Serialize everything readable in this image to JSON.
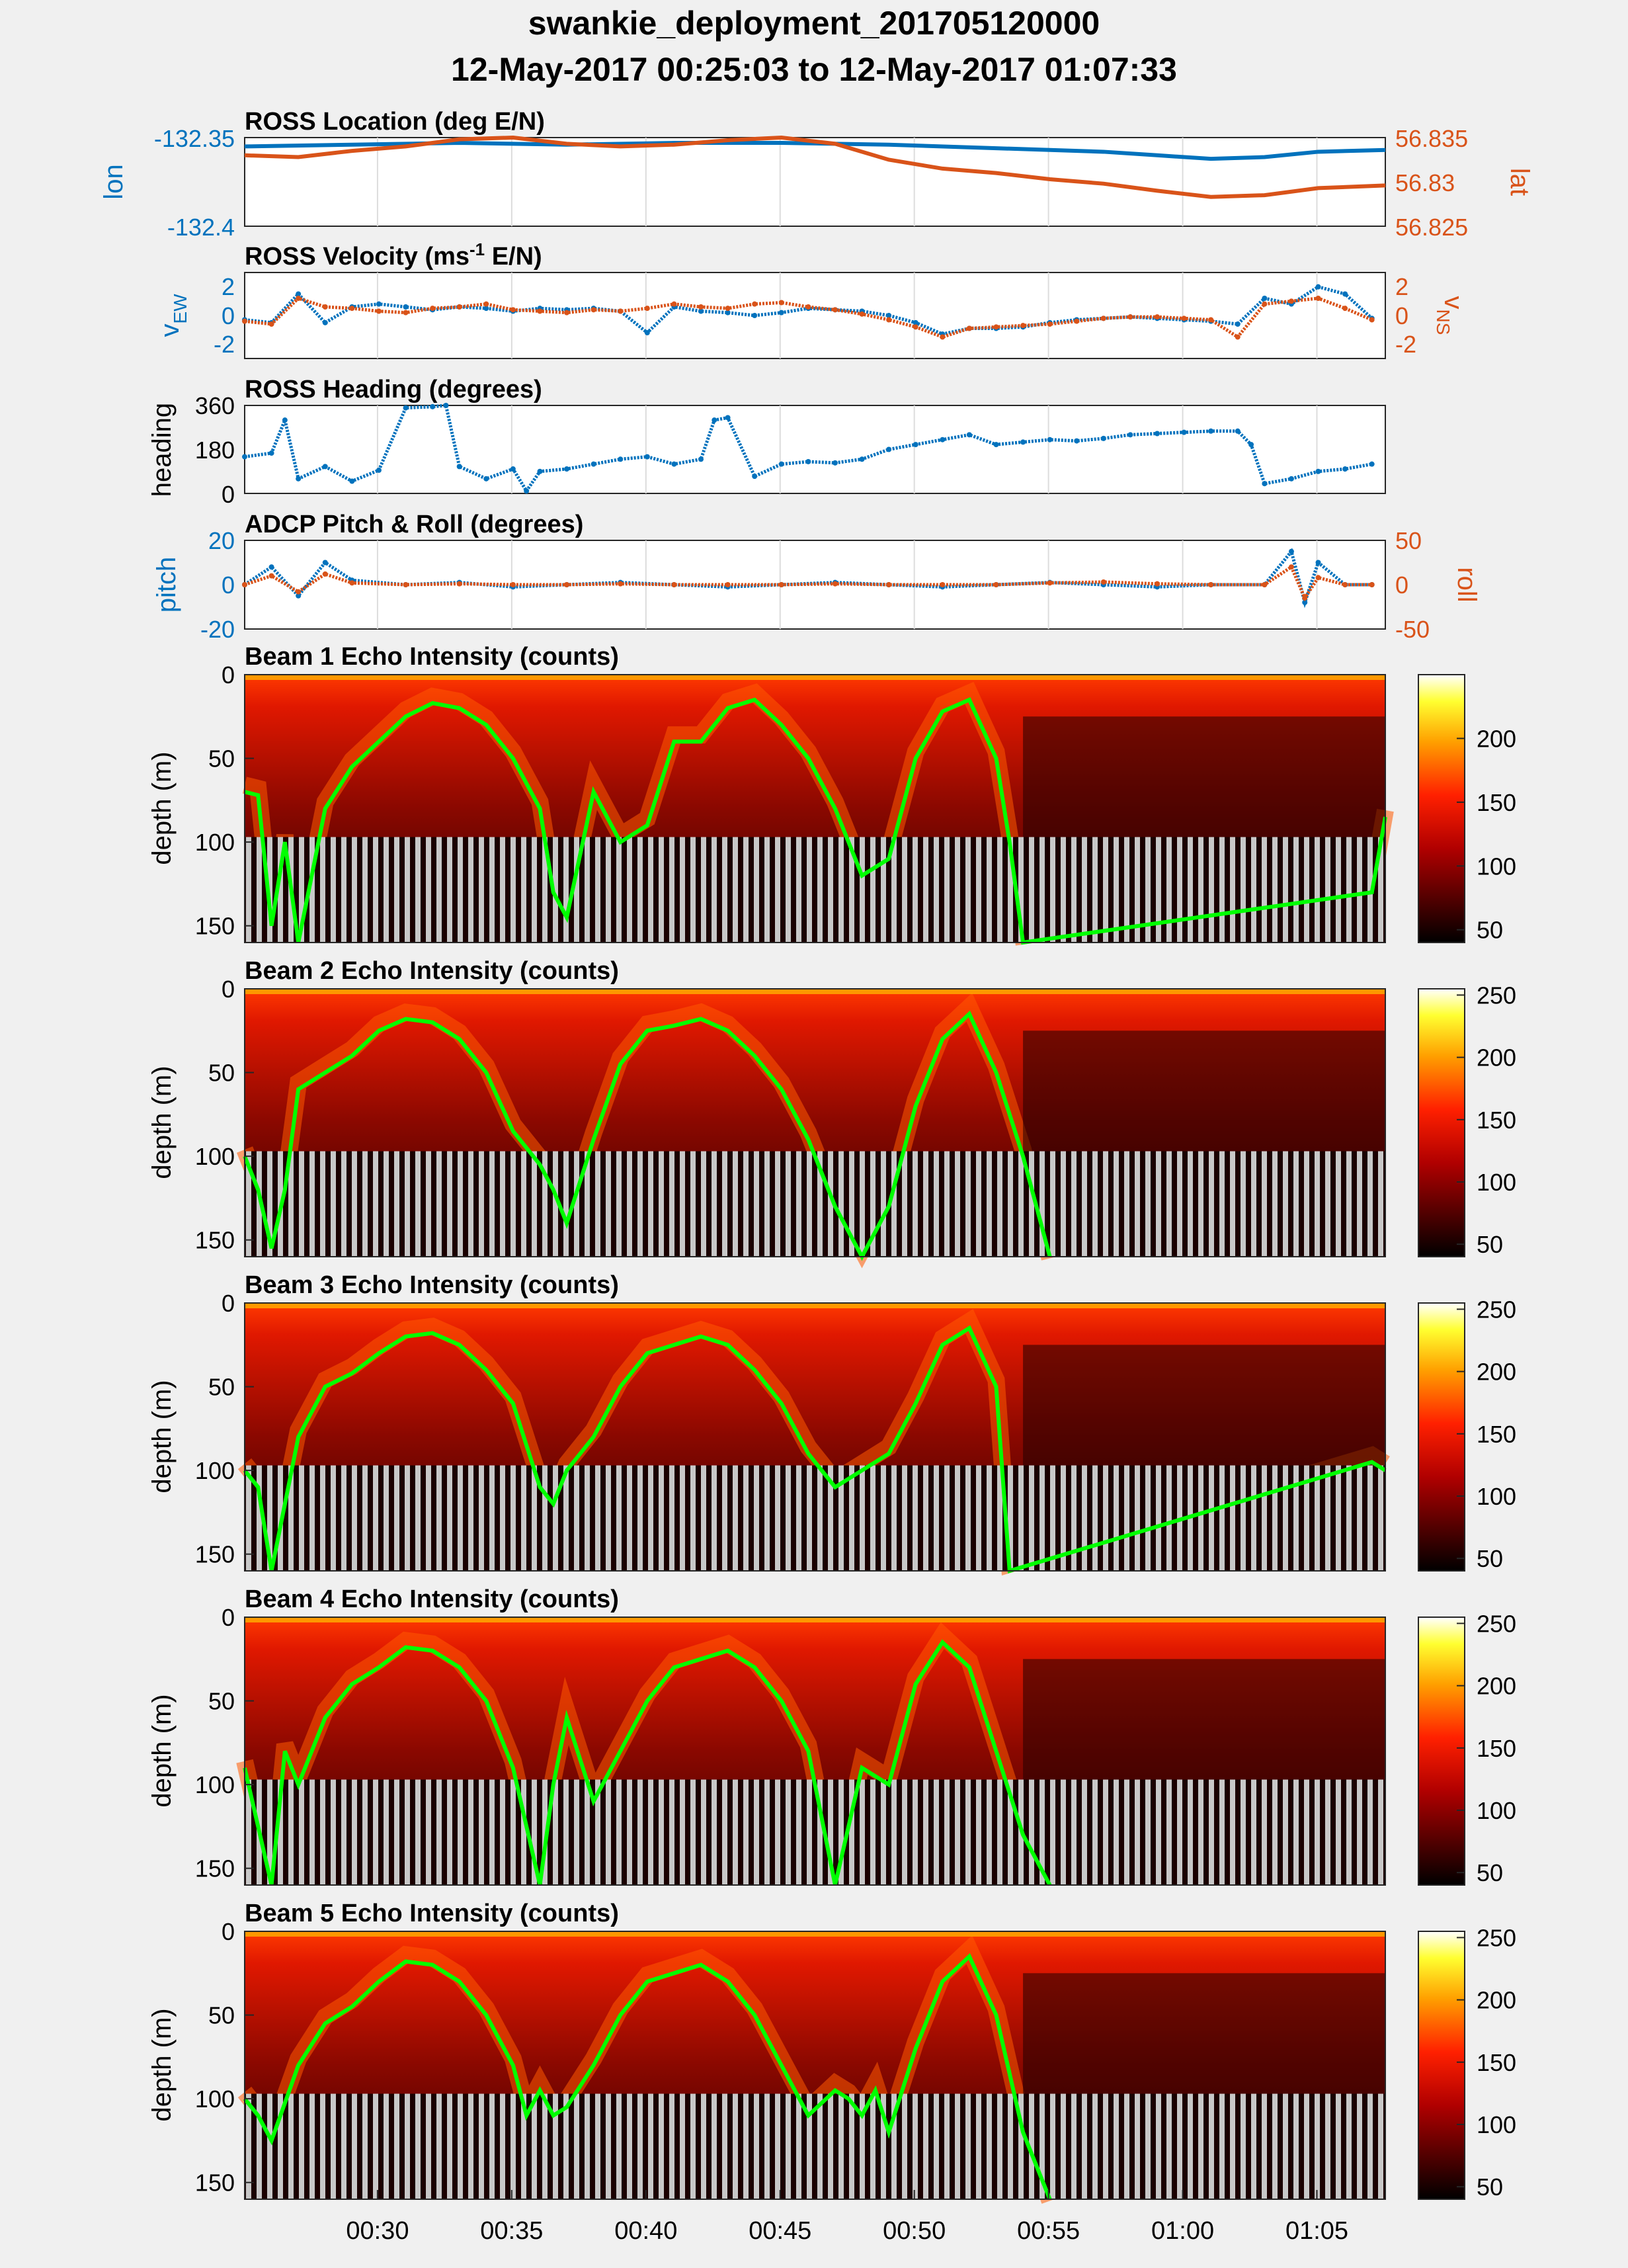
{
  "figure": {
    "title_line1": "swankie_deployment_201705120000",
    "title_line2": "12-May-2017 00:25:03 to 12-May-2017 01:07:33"
  },
  "colors": {
    "blue": "#0072bd",
    "orange": "#d95319",
    "green": "#00ff00",
    "background": "#f0f0f0",
    "grid": "#dcdcdc"
  },
  "time_axis": {
    "start": "00:25:03",
    "end": "01:07:33",
    "tick_labels": [
      "00:30",
      "00:35",
      "00:40",
      "00:45",
      "00:50",
      "00:55",
      "01:00",
      "01:05"
    ]
  },
  "panels": {
    "location": {
      "title": "ROSS Location (deg E/N)",
      "ylabel_left": "lon",
      "ylabel_right": "lat",
      "left_ticks": [
        "-132.35",
        "-132.4"
      ],
      "right_ticks": [
        "56.835",
        "56.83",
        "56.825"
      ]
    },
    "velocity": {
      "title_prefix": "ROSS Velocity (ms",
      "title_sup": "-1",
      "title_suffix": " E/N)",
      "ylabel_left_main": "v",
      "ylabel_left_sub": "EW",
      "ylabel_right_main": "v",
      "ylabel_right_sub": "NS",
      "left_ticks": [
        "2",
        "0",
        "-2"
      ],
      "right_ticks": [
        "2",
        "0",
        "-2"
      ]
    },
    "heading": {
      "title": "ROSS Heading (degrees)",
      "ylabel": "heading",
      "ticks": [
        "360",
        "180",
        "0"
      ]
    },
    "pitchroll": {
      "title": "ADCP Pitch & Roll (degrees)",
      "ylabel_left": "pitch",
      "ylabel_right": "roll",
      "left_ticks": [
        "20",
        "0",
        "-20"
      ],
      "right_ticks": [
        "50",
        "0",
        "-50"
      ]
    },
    "beams": [
      {
        "title": "Beam 1 Echo Intensity (counts)",
        "ylabel": "depth (m)",
        "depth_ticks": [
          "0",
          "50",
          "100",
          "150"
        ],
        "colorbar_ticks": [
          "200",
          "150",
          "100",
          "50"
        ]
      },
      {
        "title": "Beam 2 Echo Intensity (counts)",
        "ylabel": "depth (m)",
        "depth_ticks": [
          "0",
          "50",
          "100",
          "150"
        ],
        "colorbar_ticks": [
          "250",
          "200",
          "150",
          "100",
          "50"
        ]
      },
      {
        "title": "Beam 3 Echo Intensity (counts)",
        "ylabel": "depth (m)",
        "depth_ticks": [
          "0",
          "50",
          "100",
          "150"
        ],
        "colorbar_ticks": [
          "250",
          "200",
          "150",
          "100",
          "50"
        ]
      },
      {
        "title": "Beam 4 Echo Intensity (counts)",
        "ylabel": "depth (m)",
        "depth_ticks": [
          "0",
          "50",
          "100",
          "150"
        ],
        "colorbar_ticks": [
          "250",
          "200",
          "150",
          "100",
          "50"
        ]
      },
      {
        "title": "Beam 5 Echo Intensity (counts)",
        "ylabel": "depth (m)",
        "depth_ticks": [
          "0",
          "50",
          "100",
          "150"
        ],
        "colorbar_ticks": [
          "250",
          "200",
          "150",
          "100",
          "50"
        ]
      }
    ]
  },
  "chart_data": [
    {
      "type": "line",
      "title": "ROSS Location (deg E/N)",
      "x_unit": "minutes after 00:25:03",
      "xlim_minutes": [
        0,
        42.5
      ],
      "series": [
        {
          "name": "lon",
          "axis": "left",
          "ylim": [
            -132.4,
            -132.35
          ],
          "x": [
            0,
            4,
            8,
            12,
            16,
            20,
            24,
            28,
            32,
            34,
            36,
            38,
            40,
            42.5
          ],
          "y": [
            -132.355,
            -132.354,
            -132.353,
            -132.354,
            -132.353,
            -132.353,
            -132.354,
            -132.356,
            -132.358,
            -132.36,
            -132.362,
            -132.361,
            -132.358,
            -132.357
          ]
        },
        {
          "name": "lat",
          "axis": "right",
          "ylim": [
            56.825,
            56.835
          ],
          "x": [
            0,
            2,
            4,
            6,
            8,
            10,
            12,
            14,
            16,
            18,
            20,
            22,
            24,
            26,
            28,
            30,
            32,
            34,
            36,
            38,
            40,
            42.5
          ],
          "y": [
            56.833,
            56.8328,
            56.8335,
            56.834,
            56.8348,
            56.835,
            56.8343,
            56.834,
            56.8342,
            56.8347,
            56.835,
            56.8343,
            56.8325,
            56.8315,
            56.831,
            56.8303,
            56.8298,
            56.829,
            56.8283,
            56.8285,
            56.8293,
            56.8296
          ]
        }
      ]
    },
    {
      "type": "scatter",
      "title": "ROSS Velocity (ms-1 E/N)",
      "x_unit": "minutes after 00:25:03",
      "series": [
        {
          "name": "v_EW",
          "axis": "left",
          "ylim": [
            -3,
            3
          ],
          "x": [
            0,
            1,
            2,
            3,
            4,
            5,
            6,
            7,
            8,
            9,
            10,
            11,
            12,
            13,
            14,
            15,
            16,
            17,
            18,
            19,
            20,
            21,
            22,
            23,
            24,
            25,
            26,
            27,
            28,
            29,
            30,
            31,
            32,
            33,
            34,
            35,
            36,
            37,
            38,
            39,
            40,
            41,
            42
          ],
          "y": [
            -0.3,
            -0.5,
            1.5,
            -0.5,
            0.6,
            0.8,
            0.6,
            0.4,
            0.6,
            0.5,
            0.3,
            0.5,
            0.4,
            0.5,
            0.3,
            -1.2,
            0.6,
            0.3,
            0.2,
            0.0,
            0.2,
            0.5,
            0.4,
            0.3,
            0.0,
            -0.5,
            -1.3,
            -0.9,
            -0.9,
            -0.8,
            -0.5,
            -0.3,
            -0.2,
            -0.1,
            -0.2,
            -0.3,
            -0.4,
            -0.6,
            1.2,
            0.8,
            2.0,
            1.5,
            -0.2
          ]
        },
        {
          "name": "v_NS",
          "axis": "right",
          "ylim": [
            -3,
            3
          ],
          "x": [
            0,
            1,
            2,
            3,
            4,
            5,
            6,
            7,
            8,
            9,
            10,
            11,
            12,
            13,
            14,
            15,
            16,
            17,
            18,
            19,
            20,
            21,
            22,
            23,
            24,
            25,
            26,
            27,
            28,
            29,
            30,
            31,
            32,
            33,
            34,
            35,
            36,
            37,
            38,
            39,
            40,
            41,
            42
          ],
          "y": [
            -0.4,
            -0.6,
            1.2,
            0.6,
            0.5,
            0.3,
            0.2,
            0.5,
            0.6,
            0.8,
            0.4,
            0.3,
            0.2,
            0.4,
            0.3,
            0.5,
            0.8,
            0.6,
            0.5,
            0.8,
            0.9,
            0.6,
            0.4,
            0.1,
            -0.3,
            -0.8,
            -1.5,
            -0.9,
            -0.8,
            -0.7,
            -0.6,
            -0.4,
            -0.2,
            -0.1,
            -0.1,
            -0.2,
            -0.3,
            -1.5,
            0.8,
            1.0,
            1.2,
            0.5,
            -0.3
          ]
        }
      ]
    },
    {
      "type": "scatter",
      "title": "ROSS Heading (degrees)",
      "x_unit": "minutes after 00:25:03",
      "series": [
        {
          "name": "heading",
          "ylim": [
            0,
            360
          ],
          "x": [
            0,
            1,
            1.5,
            2,
            3,
            4,
            5,
            6,
            7,
            7.5,
            8,
            9,
            10,
            10.5,
            11,
            12,
            13,
            14,
            15,
            16,
            17,
            17.5,
            18,
            19,
            20,
            21,
            22,
            23,
            24,
            25,
            26,
            27,
            28,
            29,
            30,
            31,
            32,
            33,
            34,
            35,
            36,
            37,
            37.5,
            38,
            39,
            40,
            41,
            42
          ],
          "y": [
            150,
            165,
            300,
            60,
            110,
            50,
            95,
            350,
            355,
            360,
            110,
            60,
            100,
            10,
            90,
            100,
            120,
            140,
            150,
            120,
            140,
            300,
            310,
            70,
            120,
            130,
            125,
            140,
            180,
            200,
            220,
            240,
            200,
            210,
            220,
            215,
            225,
            240,
            245,
            250,
            255,
            255,
            200,
            40,
            60,
            90,
            100,
            120
          ]
        }
      ]
    },
    {
      "type": "scatter",
      "title": "ADCP Pitch & Roll (degrees)",
      "x_unit": "minutes after 00:25:03",
      "series": [
        {
          "name": "pitch",
          "axis": "left",
          "ylim": [
            -20,
            20
          ],
          "x": [
            0,
            1,
            2,
            3,
            4,
            6,
            8,
            10,
            12,
            14,
            16,
            18,
            20,
            22,
            24,
            26,
            28,
            30,
            32,
            34,
            36,
            38,
            39,
            39.5,
            40,
            41,
            42
          ],
          "y": [
            0,
            8,
            -5,
            10,
            2,
            0,
            1,
            -1,
            0,
            1,
            0,
            -1,
            0,
            1,
            0,
            -1,
            0,
            1,
            0,
            -1,
            0,
            0,
            15,
            -8,
            10,
            0,
            0
          ]
        },
        {
          "name": "roll",
          "axis": "right",
          "ylim": [
            -50,
            50
          ],
          "x": [
            0,
            1,
            2,
            3,
            4,
            6,
            8,
            10,
            12,
            14,
            16,
            18,
            20,
            22,
            24,
            26,
            28,
            30,
            32,
            34,
            36,
            38,
            39,
            39.5,
            40,
            41,
            42
          ],
          "y": [
            0,
            10,
            -8,
            12,
            2,
            0,
            1,
            0,
            0,
            1,
            0,
            0,
            0,
            1,
            0,
            0,
            0,
            2,
            3,
            1,
            0,
            0,
            20,
            -15,
            8,
            0,
            0
          ]
        }
      ]
    },
    {
      "type": "heatmap",
      "title": "Beam 1 Echo Intensity (counts)",
      "ylim_depth_m": [
        0,
        160
      ],
      "colorbar_range": [
        40,
        250
      ],
      "seabed_trace": {
        "x": [
          0,
          0.5,
          1,
          1.5,
          2,
          3,
          4,
          5,
          6,
          7,
          8,
          9,
          10,
          11,
          11.5,
          12,
          13,
          14,
          15,
          16,
          17,
          18,
          19,
          20,
          21,
          22,
          23,
          24,
          25,
          26,
          27,
          28,
          28.5,
          29,
          42,
          42.5
        ],
        "y": [
          70,
          72,
          150,
          100,
          160,
          80,
          55,
          40,
          25,
          17,
          20,
          30,
          50,
          80,
          130,
          145,
          70,
          100,
          90,
          40,
          40,
          20,
          15,
          30,
          50,
          80,
          120,
          110,
          50,
          22,
          15,
          50,
          100,
          160,
          130,
          85
        ]
      }
    },
    {
      "type": "heatmap",
      "title": "Beam 2 Echo Intensity (counts)",
      "ylim_depth_m": [
        0,
        160
      ],
      "colorbar_range": [
        40,
        255
      ],
      "seabed_trace": {
        "x": [
          0,
          0.5,
          1,
          1.5,
          2,
          3,
          4,
          5,
          6,
          7,
          8,
          9,
          10,
          11,
          11.5,
          12,
          13,
          14,
          15,
          16,
          17,
          18,
          19,
          20,
          21,
          22,
          23,
          24,
          25,
          26,
          27,
          28,
          29,
          30
        ],
        "y": [
          100,
          120,
          155,
          120,
          60,
          50,
          40,
          25,
          18,
          20,
          30,
          50,
          85,
          105,
          120,
          140,
          90,
          45,
          25,
          22,
          18,
          25,
          40,
          60,
          90,
          130,
          160,
          130,
          70,
          30,
          15,
          50,
          100,
          165
        ]
      }
    },
    {
      "type": "heatmap",
      "title": "Beam 3 Echo Intensity (counts)",
      "ylim_depth_m": [
        0,
        160
      ],
      "colorbar_range": [
        40,
        255
      ],
      "seabed_trace": {
        "x": [
          0,
          0.5,
          1,
          2,
          3,
          4,
          5,
          6,
          7,
          8,
          9,
          10,
          11,
          11.5,
          12,
          13,
          14,
          15,
          16,
          17,
          18,
          19,
          20,
          21,
          22,
          23,
          24,
          25,
          26,
          27,
          28,
          28.5,
          42,
          42.5
        ],
        "y": [
          100,
          110,
          160,
          80,
          50,
          42,
          30,
          20,
          18,
          25,
          40,
          60,
          110,
          120,
          100,
          80,
          50,
          30,
          25,
          20,
          25,
          40,
          60,
          90,
          110,
          100,
          90,
          60,
          25,
          15,
          50,
          160,
          95,
          100
        ]
      }
    },
    {
      "type": "heatmap",
      "title": "Beam 4 Echo Intensity (counts)",
      "ylim_depth_m": [
        0,
        160
      ],
      "colorbar_range": [
        40,
        255
      ],
      "seabed_trace": {
        "x": [
          0,
          1,
          1.5,
          2,
          3,
          4,
          5,
          6,
          7,
          8,
          9,
          10,
          11,
          11.5,
          12,
          13,
          14,
          15,
          16,
          17,
          18,
          19,
          20,
          21,
          22,
          23,
          24,
          25,
          26,
          27,
          28,
          29,
          30
        ],
        "y": [
          90,
          160,
          80,
          100,
          60,
          40,
          30,
          18,
          20,
          30,
          50,
          90,
          160,
          100,
          60,
          110,
          80,
          50,
          30,
          25,
          20,
          30,
          50,
          80,
          160,
          90,
          100,
          40,
          15,
          30,
          80,
          130,
          160
        ]
      }
    },
    {
      "type": "heatmap",
      "title": "Beam 5 Echo Intensity (counts)",
      "ylim_depth_m": [
        0,
        160
      ],
      "colorbar_range": [
        40,
        255
      ],
      "seabed_trace": {
        "x": [
          0,
          0.5,
          1,
          2,
          3,
          4,
          5,
          6,
          7,
          8,
          9,
          10,
          10.5,
          11,
          11.5,
          12,
          13,
          14,
          15,
          16,
          17,
          18,
          19,
          20,
          21,
          22,
          22.5,
          23,
          23.5,
          24,
          25,
          26,
          27,
          28,
          29,
          30
        ],
        "y": [
          100,
          110,
          125,
          80,
          55,
          45,
          30,
          18,
          20,
          30,
          50,
          80,
          110,
          95,
          110,
          105,
          80,
          50,
          30,
          25,
          20,
          30,
          50,
          80,
          110,
          95,
          100,
          110,
          95,
          120,
          70,
          30,
          15,
          50,
          120,
          165
        ]
      }
    }
  ]
}
